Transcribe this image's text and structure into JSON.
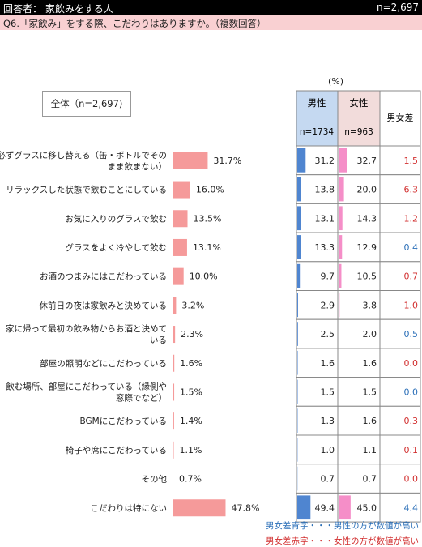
{
  "header": {
    "respondent": "回答者： 家飲みをする人",
    "n_total": "n=2,697"
  },
  "question": "Q6.「家飲み」をする際、こだわりはありますか。（複数回答）",
  "unit_label": "(%)",
  "total_label": "全体（n=2,697)",
  "table_headers": {
    "male": "男性",
    "male_n": "n=1734",
    "female": "女性",
    "female_n": "n=963",
    "diff": "男女差"
  },
  "legend": {
    "blue": "男女差青字・・・男性の方が数値が高い",
    "red": "男女差赤字・・・女性の方が数値が高い"
  },
  "colors": {
    "total_bar": "#f59a9a",
    "male_bar": "#4f85d0",
    "female_bar": "#f58ec8",
    "male_header": "#c5d9f1",
    "female_header": "#f2dcdb",
    "diff_blue": "#2b6fb8",
    "diff_red": "#d23030",
    "diff_black": "#222222"
  },
  "chart_data": {
    "type": "bar",
    "categories": [
      "必ずグラスに移し替える（缶・ボトルでそのまま飲まない）",
      "リラックスした状態で飲むことにしている",
      "お気に入りのグラスで飲む",
      "グラスをよく冷やして飲む",
      "お酒のつまみにはこだわっている",
      "休前日の夜は家飲みと決めている",
      "家に帰って最初の飲み物からお酒と決めている",
      "部屋の照明などにこだわっている",
      "飲む場所、部屋にこだわっている（縁側や窓際でなど）",
      "BGMにこだわっている",
      "椅子や席にこだわっている",
      "その他",
      "こだわりは特にない"
    ],
    "label_lines": [
      [
        "必ずグラスに移し替える（缶・ボトルでその",
        "まま飲まない）"
      ],
      [
        "リラックスした状態で飲むことにしている"
      ],
      [
        "お気に入りのグラスで飲む"
      ],
      [
        "グラスをよく冷やして飲む"
      ],
      [
        "お酒のつまみにはこだわっている"
      ],
      [
        "休前日の夜は家飲みと決めている"
      ],
      [
        "家に帰って最初の飲み物からお酒と決めて",
        "いる"
      ],
      [
        "部屋の照明などにこだわっている"
      ],
      [
        "飲む場所、部屋にこだわっている（縁側や",
        "窓際でなど）"
      ],
      [
        "BGMにこだわっている"
      ],
      [
        "椅子や席にこだわっている"
      ],
      [
        "その他"
      ],
      [
        "こだわりは特にない"
      ]
    ],
    "total": [
      31.7,
      16.0,
      13.5,
      13.1,
      10.0,
      3.2,
      2.3,
      1.6,
      1.5,
      1.4,
      1.1,
      0.7,
      47.8
    ],
    "total_labels": [
      "31.7%",
      "16.0%",
      "13.5%",
      "13.1%",
      "10.0%",
      "3.2%",
      "2.3%",
      "1.6%",
      "1.5%",
      "1.4%",
      "1.1%",
      "0.7%",
      "47.8%"
    ],
    "series": [
      {
        "name": "男性",
        "values": [
          31.2,
          13.8,
          13.1,
          13.3,
          9.7,
          2.9,
          2.5,
          1.6,
          1.5,
          1.3,
          1.0,
          0.7,
          49.4
        ],
        "labels": [
          "31.2",
          "13.8",
          "13.1",
          "13.3",
          "9.7",
          "2.9",
          "2.5",
          "1.6",
          "1.5",
          "1.3",
          "1.0",
          "0.7",
          "49.4"
        ]
      },
      {
        "name": "女性",
        "values": [
          32.7,
          20.0,
          14.3,
          12.9,
          10.5,
          3.8,
          2.0,
          1.6,
          1.5,
          1.6,
          1.1,
          0.7,
          45.0
        ],
        "labels": [
          "32.7",
          "20.0",
          "14.3",
          "12.9",
          "10.5",
          "3.8",
          "2.0",
          "1.6",
          "1.5",
          "1.6",
          "1.1",
          "0.7",
          "45.0"
        ]
      }
    ],
    "diff": [
      1.5,
      6.3,
      1.2,
      0.4,
      0.7,
      1.0,
      0.5,
      0.0,
      0.0,
      0.3,
      0.1,
      0.0,
      4.4
    ],
    "diff_labels": [
      "1.5",
      "6.3",
      "1.2",
      "0.4",
      "0.7",
      "1.0",
      "0.5",
      "0.0",
      "0.0",
      "0.3",
      "0.1",
      "0.0",
      "4.4"
    ],
    "diff_color": [
      "red",
      "red",
      "red",
      "blue",
      "red",
      "red",
      "blue",
      "red",
      "blue",
      "red",
      "red",
      "red",
      "blue"
    ]
  }
}
